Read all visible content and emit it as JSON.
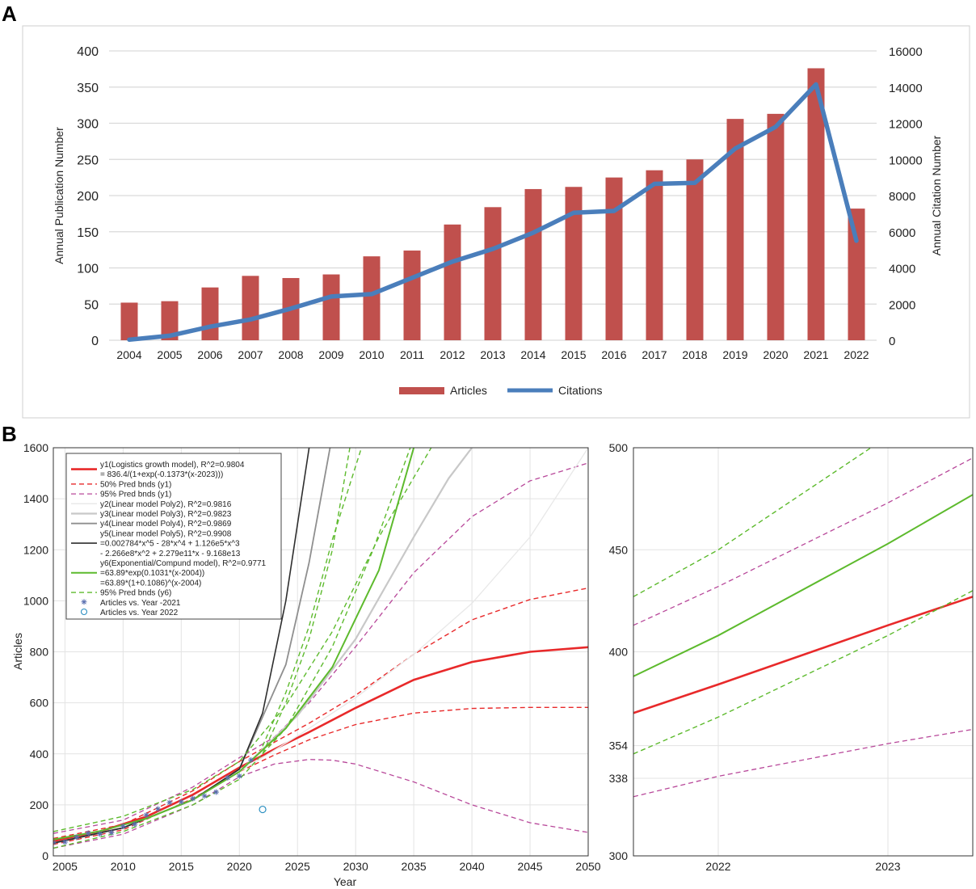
{
  "colors": {
    "articles": "#c0504d",
    "citations": "#4a7ebb",
    "red": "#e8292a",
    "magenta": "#b8489a",
    "green": "#5dba2d",
    "grid_light": "#d0d0d0",
    "light_gray": "#d4d4d4",
    "mid_gray": "#8f8f8f",
    "dark_gray": "#2e2e2e",
    "marker_blue": "#5a6fb0",
    "marker_cyan": "#2a8ec0"
  },
  "chart_data": [
    {
      "panel": "A",
      "type": "bar",
      "title": "",
      "xlabel": "",
      "ylabel": "Annual Publication Number",
      "y2label": "Annual Citation Number",
      "ylim": [
        0,
        400
      ],
      "yticks": [
        0,
        50,
        100,
        150,
        200,
        250,
        300,
        350,
        400
      ],
      "y2lim": [
        0,
        16000
      ],
      "y2ticks": [
        0,
        2000,
        4000,
        6000,
        8000,
        10000,
        12000,
        14000,
        16000
      ],
      "categories": [
        "2004",
        "2005",
        "2006",
        "2007",
        "2008",
        "2009",
        "2010",
        "2011",
        "2012",
        "2013",
        "2014",
        "2015",
        "2016",
        "2017",
        "2018",
        "2019",
        "2020",
        "2021",
        "2022"
      ],
      "series": [
        {
          "name": "Articles",
          "kind": "bar",
          "axis": "left",
          "values": [
            52,
            54,
            73,
            89,
            86,
            91,
            116,
            124,
            160,
            184,
            209,
            212,
            225,
            235,
            250,
            306,
            313,
            376,
            182
          ]
        },
        {
          "name": "Citations",
          "kind": "line",
          "axis": "right",
          "values": [
            30,
            250,
            750,
            1150,
            1750,
            2420,
            2550,
            3450,
            4350,
            5050,
            5950,
            7050,
            7150,
            8650,
            8700,
            10600,
            11800,
            14150,
            5500
          ]
        }
      ],
      "legend": {
        "position": "bottom",
        "entries": [
          "Articles",
          "Citations"
        ]
      },
      "grid": true
    },
    {
      "panel": "B-left",
      "type": "line",
      "xlabel": "Year",
      "ylabel": "Articles",
      "xlim": [
        2004,
        2050
      ],
      "xticks": [
        2005,
        2010,
        2015,
        2020,
        2025,
        2030,
        2035,
        2040,
        2045,
        2050
      ],
      "ylim": [
        0,
        1600
      ],
      "yticks": [
        0,
        200,
        400,
        600,
        800,
        1000,
        1200,
        1400,
        1600
      ],
      "grid": true,
      "legend": {
        "position": "top-left",
        "entries": [
          {
            "id": "y1",
            "style": "red-solid",
            "lines": [
              "y1(Logistics growth model), R^2=0.9804",
              "= 836.4/(1+exp(-0.1373*(x-2023)))"
            ]
          },
          {
            "id": "y1_50",
            "style": "red-dash",
            "lines": [
              "50% Pred bnds (y1)"
            ]
          },
          {
            "id": "y1_95",
            "style": "magenta-dash",
            "lines": [
              "95% Pred bnds (y1)"
            ]
          },
          {
            "id": "y2",
            "style": "lightgray-solid",
            "lines": [
              "y2(Linear model Poly2), R^2=0.9816"
            ]
          },
          {
            "id": "y3",
            "style": "gray-solid",
            "lines": [
              "y3(Linear model Poly3), R^2=0.9823"
            ]
          },
          {
            "id": "y4",
            "style": "midgray-solid",
            "lines": [
              "y4(Linear model Poly4), R^2=0.9869"
            ]
          },
          {
            "id": "y5",
            "style": "dark-solid",
            "lines": [
              "y5(Linear model Poly5), R^2=0.9908",
              "=0.002784*x^5 - 28*x^4 + 1.126e5*x^3",
              "- 2.266e8*x^2 + 2.279e11*x - 9.168e13"
            ]
          },
          {
            "id": "y6",
            "style": "green-solid",
            "lines": [
              "y6(Exponential/Compund model), R^2=0.9771",
              "=63.89*exp(0.1031*(x-2004))",
              "=63.89*(1+0.1086)^(x-2004)"
            ]
          },
          {
            "id": "y6_95",
            "style": "green-dash",
            "lines": [
              "95% Pred bnds (y6)"
            ]
          },
          {
            "id": "pts",
            "style": "star-marker",
            "lines": [
              "Articles vs. Year -2021"
            ]
          },
          {
            "id": "pt22",
            "style": "circle-marker",
            "lines": [
              "Articles vs. Year 2022"
            ]
          }
        ]
      },
      "curves": [
        {
          "id": "y1",
          "x": [
            2004,
            2008,
            2012,
            2016,
            2020,
            2023,
            2026,
            2030,
            2035,
            2040,
            2045,
            2050
          ],
          "y": [
            57,
            95,
            154,
            240,
            346,
            418,
            485,
            580,
            690,
            760,
            800,
            818
          ]
        },
        {
          "id": "y1_50_upper",
          "x": [
            2004,
            2010,
            2016,
            2020,
            2023,
            2026,
            2030,
            2035,
            2040,
            2045,
            2050
          ],
          "y": [
            68,
            123,
            255,
            370,
            445,
            520,
            630,
            790,
            925,
            1005,
            1050
          ]
        },
        {
          "id": "y1_50_lower",
          "x": [
            2004,
            2010,
            2016,
            2020,
            2023,
            2026,
            2030,
            2035,
            2040,
            2045,
            2050
          ],
          "y": [
            45,
            102,
            225,
            330,
            395,
            455,
            515,
            560,
            578,
            582,
            582
          ]
        },
        {
          "id": "y1_95_upper",
          "x": [
            2004,
            2010,
            2016,
            2020,
            2023,
            2026,
            2030,
            2035,
            2040,
            2045,
            2050
          ],
          "y": [
            88,
            140,
            270,
            385,
            465,
            600,
            820,
            1110,
            1330,
            1470,
            1540
          ]
        },
        {
          "id": "y1_95_lower",
          "x": [
            2004,
            2010,
            2016,
            2020,
            2023,
            2026,
            2028,
            2030,
            2035,
            2040,
            2045,
            2050
          ],
          "y": [
            30,
            85,
            200,
            310,
            360,
            378,
            375,
            360,
            290,
            200,
            130,
            92
          ]
        },
        {
          "id": "y2",
          "x": [
            2004,
            2010,
            2016,
            2020,
            2025,
            2030,
            2035,
            2040,
            2045,
            2050
          ],
          "y": [
            50,
            110,
            220,
            330,
            470,
            620,
            790,
            990,
            1250,
            1600
          ]
        },
        {
          "id": "y3",
          "x": [
            2004,
            2010,
            2016,
            2020,
            2025,
            2030,
            2035,
            2038,
            2040
          ],
          "y": [
            50,
            110,
            220,
            330,
            550,
            850,
            1250,
            1480,
            1600
          ]
        },
        {
          "id": "y4",
          "x": [
            2004,
            2010,
            2016,
            2020,
            2024,
            2026,
            2027.8
          ],
          "y": [
            50,
            110,
            220,
            340,
            750,
            1150,
            1600
          ]
        },
        {
          "id": "y5",
          "x": [
            2004,
            2010,
            2016,
            2020,
            2022,
            2024,
            2025,
            2026
          ],
          "y": [
            50,
            110,
            220,
            340,
            560,
            1000,
            1300,
            1600
          ]
        },
        {
          "id": "y6",
          "x": [
            2004,
            2008,
            2012,
            2016,
            2020,
            2024,
            2028,
            2032,
            2035
          ],
          "y": [
            64,
            97,
            146,
            220,
            330,
            500,
            740,
            1120,
            1600
          ]
        },
        {
          "id": "y6_95_a",
          "x": [
            2004,
            2010,
            2016,
            2020,
            2024,
            2028,
            2032,
            2036.5
          ],
          "y": [
            95,
            155,
            260,
            370,
            590,
            880,
            1250,
            1600
          ]
        },
        {
          "id": "y6_95_b",
          "x": [
            2004,
            2010,
            2016,
            2020,
            2024,
            2028,
            2031.5,
            2034.7
          ],
          "y": [
            30,
            95,
            200,
            300,
            500,
            820,
            1200,
            1600
          ]
        },
        {
          "id": "y6_95_c",
          "x": [
            2022,
            2024,
            2026,
            2028,
            2030.5
          ],
          "y": [
            430,
            640,
            900,
            1240,
            1600
          ]
        },
        {
          "id": "y6_95_d",
          "x": [
            2022,
            2024,
            2026,
            2028,
            2029.5
          ],
          "y": [
            400,
            600,
            850,
            1200,
            1600
          ]
        }
      ],
      "points_to_2021": {
        "x": [
          2004,
          2005,
          2006,
          2007,
          2008,
          2009,
          2010,
          2011,
          2012,
          2013,
          2014,
          2015,
          2016,
          2017,
          2018,
          2019,
          2020,
          2021
        ],
        "y": [
          52,
          54,
          73,
          89,
          86,
          91,
          116,
          124,
          160,
          184,
          209,
          212,
          225,
          235,
          250,
          306,
          313,
          376
        ]
      },
      "point_2022": {
        "x": 2022,
        "y": 182
      }
    },
    {
      "panel": "B-right",
      "type": "line",
      "xlim": [
        2021.5,
        2023.5
      ],
      "xticks": [
        2022,
        2023
      ],
      "ylim": [
        300,
        500
      ],
      "yticks": [
        300,
        338,
        354,
        400,
        450,
        500
      ],
      "grid": true,
      "curves": [
        {
          "id": "y6",
          "x": [
            2021.5,
            2022,
            2023,
            2023.5
          ],
          "y": [
            388,
            408,
            453,
            477
          ]
        },
        {
          "id": "y1",
          "x": [
            2021.5,
            2022,
            2023,
            2023.5
          ],
          "y": [
            370,
            384,
            413,
            427
          ]
        },
        {
          "id": "y6_95_upper",
          "x": [
            2021.5,
            2022,
            2022.9
          ],
          "y": [
            427,
            450,
            500
          ]
        },
        {
          "id": "y6_95_lower",
          "x": [
            2021.5,
            2022,
            2023,
            2023.5
          ],
          "y": [
            350,
            368,
            408,
            430
          ]
        },
        {
          "id": "y1_95_upper",
          "x": [
            2021.5,
            2022,
            2023,
            2023.5
          ],
          "y": [
            413,
            432,
            473,
            495
          ]
        },
        {
          "id": "y1_95_lower",
          "x": [
            2021.5,
            2022,
            2023,
            2023.5
          ],
          "y": [
            329,
            339,
            355,
            362
          ]
        }
      ]
    }
  ],
  "labels": {
    "panel_a": "A",
    "panel_b": "B"
  }
}
